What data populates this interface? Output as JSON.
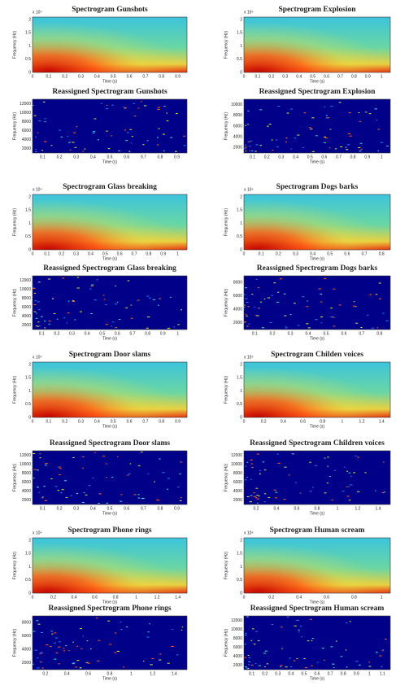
{
  "panels": [
    {
      "title": "Spectrogram Gunshots",
      "kind": "spectrogram",
      "exponent": "x 10⁴",
      "ylabel": "Frequency (Hz)",
      "xlabel": "Time (s)",
      "yticks": [
        "2",
        "1.5",
        "1",
        "0.5",
        "0"
      ],
      "xticks": [
        "0",
        "0.1",
        "0.2",
        "0.3",
        "0.4",
        "0.5",
        "0.6",
        "0.7",
        "0.8",
        "0.9"
      ]
    },
    {
      "title": "Spectrogram Explosion",
      "kind": "spectrogram",
      "exponent": "x 10⁴",
      "ylabel": "Frequency (Hz)",
      "xlabel": "Time (s)",
      "yticks": [
        "2",
        "1.5",
        "1",
        "0.5",
        "0"
      ],
      "xticks": [
        "0",
        "0.1",
        "0.2",
        "0.3",
        "0.4",
        "0.5",
        "0.6",
        "0.7",
        "0.8",
        "0.9",
        "1"
      ]
    },
    {
      "title": "Reassigned Spectrogram Gunshots",
      "kind": "reassigned",
      "ylabel": "Frequency (Hz)",
      "xlabel": "Time (s)",
      "yticks": [
        "12000",
        "10000",
        "8000",
        "6000",
        "4000",
        "2000"
      ],
      "xticks": [
        "0.1",
        "0.2",
        "0.3",
        "0.4",
        "0.5",
        "0.6",
        "0.7",
        "0.8",
        "0.9"
      ]
    },
    {
      "title": "Reassigned Spectrogram Explosion",
      "kind": "reassigned",
      "ylabel": "Frequency (Hz)",
      "xlabel": "Time (s)",
      "yticks": [
        "10000",
        "8000",
        "6000",
        "4000",
        "2000"
      ],
      "xticks": [
        "0.1",
        "0.2",
        "0.3",
        "0.4",
        "0.5",
        "0.6",
        "0.7",
        "0.8",
        "0.9",
        "1"
      ]
    },
    {
      "title": "Spectrogram Glass breaking",
      "kind": "spectrogram",
      "exponent": "x 10⁴",
      "ylabel": "Frequency (Hz)",
      "xlabel": "Time (s)",
      "yticks": [
        "2",
        "1.5",
        "1",
        "0.5",
        "0"
      ],
      "xticks": [
        "0",
        "0.1",
        "0.2",
        "0.3",
        "0.4",
        "0.5",
        "0.6",
        "0.7",
        "0.8",
        "0.9",
        "1"
      ]
    },
    {
      "title": "Spectrogram Dogs barks",
      "kind": "spectrogram",
      "exponent": "x 10⁴",
      "ylabel": "Frequency (Hz)",
      "xlabel": "Time (s)",
      "yticks": [
        "2",
        "1.5",
        "1",
        "0.5",
        "0"
      ],
      "xticks": [
        "0",
        "0.1",
        "0.2",
        "0.3",
        "0.4",
        "0.5",
        "0.6",
        "0.7",
        "0.8"
      ]
    },
    {
      "title": "Reassigned Spectrogram Glass breaking",
      "kind": "reassigned",
      "ylabel": "Frequency (Hz)",
      "xlabel": "Time (s)",
      "yticks": [
        "12000",
        "10000",
        "8000",
        "6000",
        "4000",
        "2000"
      ],
      "xticks": [
        "0.1",
        "0.2",
        "0.3",
        "0.4",
        "0.5",
        "0.6",
        "0.7",
        "0.8",
        "0.9",
        "1"
      ]
    },
    {
      "title": "Reassigned Spectrogram Dogs barks",
      "kind": "reassigned",
      "ylabel": "Frequency (Hz)",
      "xlabel": "Time (s)",
      "yticks": [
        "8000",
        "6000",
        "4000",
        "2000"
      ],
      "xticks": [
        "0.1",
        "0.2",
        "0.3",
        "0.4",
        "0.5",
        "0.6",
        "0.7",
        "0.8"
      ]
    },
    {
      "title": "Spectrogram Door slams",
      "kind": "spectrogram",
      "exponent": "x 10⁴",
      "ylabel": "Frequency (Hz)",
      "xlabel": "Time (s)",
      "yticks": [
        "2",
        "1.5",
        "1",
        "0.5",
        "0"
      ],
      "xticks": [
        "0",
        "0.1",
        "0.2",
        "0.3",
        "0.4",
        "0.5",
        "0.6",
        "0.7",
        "0.8",
        "0.9"
      ]
    },
    {
      "title": "Spectrogram Childen voices",
      "kind": "spectrogram",
      "exponent": "x 10⁴",
      "ylabel": "Frequency (Hz)",
      "xlabel": "Time (s)",
      "yticks": [
        "2",
        "1.5",
        "1",
        "0.5",
        "0"
      ],
      "xticks": [
        "0",
        "0.2",
        "0.4",
        "0.6",
        "0.8",
        "1",
        "1.2",
        "1.4"
      ]
    },
    {
      "title": "Reassigned Spectrogram Door slams",
      "kind": "reassigned",
      "ylabel": "Frequency (Hz)",
      "xlabel": "Time (s)",
      "yticks": [
        "12000",
        "10000",
        "8000",
        "6000",
        "4000",
        "2000"
      ],
      "xticks": [
        "0.1",
        "0.2",
        "0.3",
        "0.4",
        "0.5",
        "0.6",
        "0.7",
        "0.8",
        "0.9"
      ]
    },
    {
      "title": "Reassigned Spectrogram Children voices",
      "kind": "reassigned",
      "ylabel": "Frequency (Hz)",
      "xlabel": "Time (s)",
      "yticks": [
        "12000",
        "10000",
        "8000",
        "6000",
        "4000",
        "2000"
      ],
      "xticks": [
        "0.2",
        "0.4",
        "0.6",
        "0.8",
        "1",
        "1.2",
        "1.4"
      ]
    },
    {
      "title": "Spectrogram Phone rings",
      "kind": "spectrogram",
      "exponent": "x 10⁴",
      "ylabel": "Frequency (Hz)",
      "xlabel": "Time (s)",
      "yticks": [
        "2",
        "1.5",
        "1",
        "0.5",
        "0"
      ],
      "xticks": [
        "0",
        "0.2",
        "0.4",
        "0.6",
        "0.8",
        "1",
        "1.2",
        "1.4"
      ]
    },
    {
      "title": "Spectrogram Human scream",
      "kind": "spectrogram",
      "exponent": "x 10⁴",
      "ylabel": "Frequency (Hz)",
      "xlabel": "Time (s)",
      "yticks": [
        "2",
        "1.5",
        "1",
        "0.5",
        "0"
      ],
      "xticks": [
        "0",
        "0.2",
        "0.4",
        "0.6",
        "0.8",
        "1"
      ]
    },
    {
      "title": "Reassigned Spectrogram Phone rings",
      "kind": "reassigned",
      "ylabel": "Frequency (Hz)",
      "xlabel": "Time (s)",
      "yticks": [
        "8000",
        "6000",
        "4000",
        "2000"
      ],
      "xticks": [
        "0.2",
        "0.4",
        "0.6",
        "0.8",
        "1",
        "1.2",
        "1.4"
      ]
    },
    {
      "title": "Reassigned Spectrogram Human scream",
      "kind": "reassigned",
      "ylabel": "Frequency (Hz)",
      "xlabel": "Time (s)",
      "yticks": [
        "12000",
        "10000",
        "8000",
        "6000",
        "4000",
        "2000"
      ],
      "xticks": [
        "0.1",
        "0.2",
        "0.3",
        "0.4",
        "0.5",
        "0.6",
        "0.7",
        "0.8",
        "0.9",
        "1",
        "1.1"
      ]
    }
  ]
}
